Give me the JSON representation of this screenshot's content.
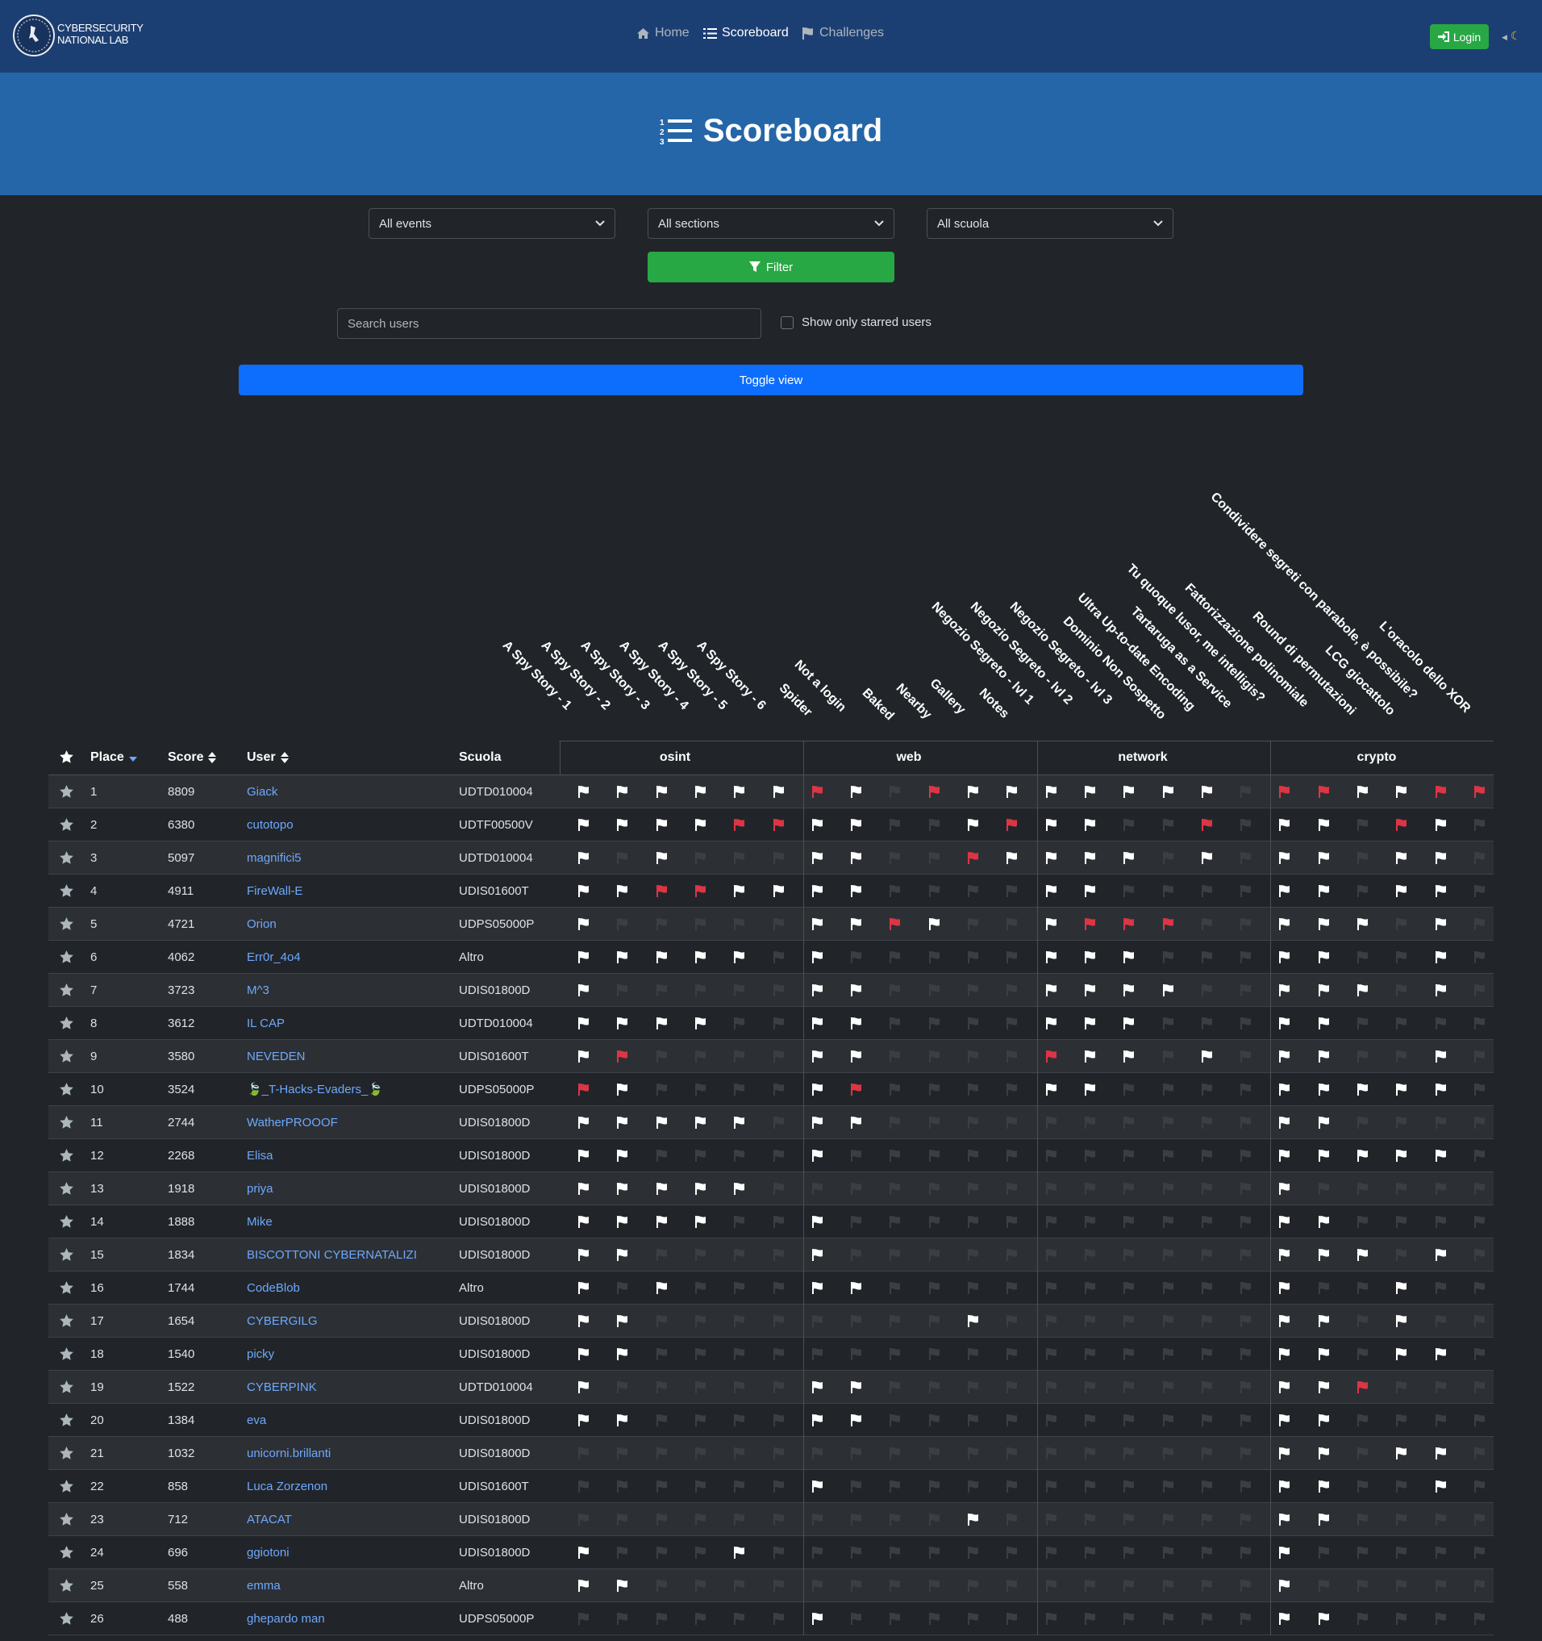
{
  "navbar": {
    "brand_line1": "CYBERSECURITY",
    "brand_line2": "NATIONAL LAB",
    "links": [
      {
        "label": "Home",
        "icon": "home-icon",
        "active": false
      },
      {
        "label": "Scoreboard",
        "icon": "list-ol-icon",
        "active": true
      },
      {
        "label": "Challenges",
        "icon": "flag-icon",
        "active": false
      }
    ],
    "login_label": "Login",
    "theme_toggle_icon": "moon-icon"
  },
  "page_title": "Scoreboard",
  "filters": {
    "events": "All events",
    "sections": "All sections",
    "scuola": "All scuola",
    "filter_label": "Filter"
  },
  "search": {
    "placeholder": "Search users"
  },
  "starred_label": "Show only starred users",
  "toggle_label": "Toggle view",
  "columns": {
    "place": "Place",
    "score": "Score",
    "user": "User",
    "scuola": "Scuola"
  },
  "sections": [
    {
      "name": "osint",
      "challenges": [
        "A Spy Story - 1",
        "A Spy Story - 2",
        "A Spy Story - 3",
        "A Spy Story - 4",
        "A Spy Story - 5",
        "A Spy Story - 6"
      ]
    },
    {
      "name": "web",
      "challenges": [
        "Spider",
        "Not a login",
        "Baked",
        "Nearby",
        "Gallery",
        "Notes"
      ]
    },
    {
      "name": "network",
      "challenges": [
        "Negozio Segreto - lvl 1",
        "Negozio Segreto - lvl 2",
        "Negozio Segreto - lvl 3",
        "Dominio Non Sospetto",
        "Ultra Up-to-date Encoding",
        "Tartaruga as a Service"
      ]
    },
    {
      "name": "crypto",
      "challenges": [
        "Tu quoque lusor, me intelligis?",
        "Fattorizzazione polinomiale",
        "Round di permutazioni",
        "LCG giocattolo",
        "Condividere segreti con parabole, è possibile?",
        "L'oracolo dello XOR"
      ]
    }
  ],
  "colors": {
    "solved": "#ffffff",
    "first_blood": "#dc3545",
    "unsolved": "#3a3f44",
    "link": "#6ea8fe",
    "navbar": "#1c3f73",
    "hero": "#2466a8",
    "accent": "#0d6efd",
    "success": "#28a745"
  },
  "legend": "flags: 1 = solved (white), 2 = first blood (red), 0 = unsolved (dark)",
  "rows": [
    {
      "place": "1",
      "score": "8809",
      "user": "Giack",
      "scuola": "UDTD010004",
      "flags": [
        1,
        1,
        1,
        1,
        1,
        1,
        2,
        1,
        0,
        2,
        1,
        1,
        1,
        1,
        1,
        1,
        1,
        0,
        2,
        2,
        1,
        1,
        2,
        2
      ]
    },
    {
      "place": "2",
      "score": "6380",
      "user": "cutotopo",
      "scuola": "UDTF00500V",
      "flags": [
        1,
        1,
        1,
        1,
        2,
        2,
        1,
        1,
        0,
        0,
        1,
        2,
        1,
        1,
        0,
        0,
        2,
        0,
        1,
        1,
        0,
        2,
        1,
        0
      ]
    },
    {
      "place": "3",
      "score": "5097",
      "user": "magnifici5",
      "scuola": "UDTD010004",
      "flags": [
        1,
        0,
        1,
        0,
        0,
        0,
        1,
        1,
        0,
        0,
        2,
        1,
        1,
        1,
        1,
        0,
        1,
        0,
        1,
        1,
        0,
        1,
        1,
        0
      ]
    },
    {
      "place": "4",
      "score": "4911",
      "user": "FireWall-E",
      "scuola": "UDIS01600T",
      "flags": [
        1,
        1,
        2,
        2,
        1,
        1,
        1,
        1,
        0,
        0,
        0,
        0,
        1,
        1,
        0,
        0,
        0,
        0,
        1,
        1,
        0,
        1,
        1,
        0
      ]
    },
    {
      "place": "5",
      "score": "4721",
      "user": "Orion",
      "scuola": "UDPS05000P",
      "flags": [
        1,
        0,
        0,
        0,
        0,
        0,
        1,
        1,
        2,
        1,
        0,
        0,
        1,
        2,
        2,
        2,
        0,
        0,
        1,
        1,
        1,
        0,
        1,
        0
      ]
    },
    {
      "place": "6",
      "score": "4062",
      "user": "Err0r_4o4",
      "scuola": "Altro",
      "flags": [
        1,
        1,
        1,
        1,
        1,
        0,
        1,
        0,
        0,
        0,
        0,
        0,
        1,
        1,
        1,
        0,
        0,
        0,
        1,
        1,
        0,
        0,
        1,
        0
      ]
    },
    {
      "place": "7",
      "score": "3723",
      "user": "M^3",
      "scuola": "UDIS01800D",
      "flags": [
        1,
        0,
        0,
        0,
        0,
        0,
        1,
        1,
        0,
        0,
        0,
        0,
        1,
        1,
        1,
        1,
        0,
        0,
        1,
        1,
        1,
        0,
        1,
        0
      ]
    },
    {
      "place": "8",
      "score": "3612",
      "user": "IL CAP",
      "scuola": "UDTD010004",
      "flags": [
        1,
        1,
        1,
        1,
        0,
        0,
        1,
        1,
        0,
        0,
        0,
        0,
        1,
        1,
        1,
        0,
        0,
        0,
        1,
        1,
        0,
        0,
        0,
        0
      ]
    },
    {
      "place": "9",
      "score": "3580",
      "user": "NEVEDEN",
      "scuola": "UDIS01600T",
      "flags": [
        1,
        2,
        0,
        0,
        0,
        0,
        1,
        1,
        0,
        0,
        0,
        0,
        2,
        1,
        1,
        0,
        1,
        0,
        1,
        1,
        0,
        0,
        1,
        0
      ]
    },
    {
      "place": "10",
      "score": "3524",
      "user": "🍃_T-Hacks-Evaders_🍃",
      "scuola": "UDPS05000P",
      "flags": [
        2,
        1,
        0,
        0,
        0,
        0,
        1,
        2,
        0,
        0,
        0,
        0,
        1,
        1,
        0,
        0,
        0,
        0,
        1,
        1,
        1,
        1,
        1,
        0
      ]
    },
    {
      "place": "11",
      "score": "2744",
      "user": "WatherPROOOF",
      "scuola": "UDIS01800D",
      "flags": [
        1,
        1,
        1,
        1,
        1,
        0,
        1,
        1,
        0,
        0,
        0,
        0,
        0,
        0,
        0,
        0,
        0,
        0,
        1,
        1,
        0,
        0,
        0,
        0
      ]
    },
    {
      "place": "12",
      "score": "2268",
      "user": "Elisa",
      "scuola": "UDIS01800D",
      "flags": [
        1,
        1,
        0,
        0,
        0,
        0,
        1,
        0,
        0,
        0,
        0,
        0,
        0,
        0,
        0,
        0,
        0,
        0,
        1,
        1,
        1,
        1,
        1,
        0
      ]
    },
    {
      "place": "13",
      "score": "1918",
      "user": "priya",
      "scuola": "UDIS01800D",
      "flags": [
        1,
        1,
        1,
        1,
        1,
        0,
        0,
        0,
        0,
        0,
        0,
        0,
        0,
        0,
        0,
        0,
        0,
        0,
        1,
        0,
        0,
        0,
        0,
        0
      ]
    },
    {
      "place": "14",
      "score": "1888",
      "user": "Mike",
      "scuola": "UDIS01800D",
      "flags": [
        1,
        1,
        1,
        1,
        0,
        0,
        1,
        0,
        0,
        0,
        0,
        0,
        0,
        0,
        0,
        0,
        0,
        0,
        1,
        1,
        0,
        0,
        0,
        0
      ]
    },
    {
      "place": "15",
      "score": "1834",
      "user": "BISCOTTONI CYBERNATALIZI",
      "scuola": "UDIS01800D",
      "flags": [
        1,
        1,
        0,
        0,
        0,
        0,
        1,
        0,
        0,
        0,
        0,
        0,
        0,
        0,
        0,
        0,
        0,
        0,
        1,
        1,
        1,
        0,
        1,
        0
      ]
    },
    {
      "place": "16",
      "score": "1744",
      "user": "CodeBlob",
      "scuola": "Altro",
      "flags": [
        1,
        0,
        1,
        0,
        0,
        0,
        1,
        1,
        0,
        0,
        0,
        0,
        0,
        0,
        0,
        0,
        0,
        0,
        1,
        0,
        0,
        1,
        0,
        0
      ]
    },
    {
      "place": "17",
      "score": "1654",
      "user": "CYBERGILG",
      "scuola": "UDIS01800D",
      "flags": [
        1,
        1,
        0,
        0,
        0,
        0,
        0,
        0,
        0,
        0,
        1,
        0,
        0,
        0,
        0,
        0,
        0,
        0,
        1,
        1,
        0,
        1,
        0,
        0
      ]
    },
    {
      "place": "18",
      "score": "1540",
      "user": "picky",
      "scuola": "UDIS01800D",
      "flags": [
        1,
        1,
        0,
        0,
        0,
        0,
        0,
        0,
        0,
        0,
        0,
        0,
        0,
        0,
        0,
        0,
        0,
        0,
        1,
        1,
        0,
        1,
        1,
        0
      ]
    },
    {
      "place": "19",
      "score": "1522",
      "user": "CYBERPINK",
      "scuola": "UDTD010004",
      "flags": [
        1,
        0,
        0,
        0,
        0,
        0,
        1,
        1,
        0,
        0,
        0,
        0,
        0,
        0,
        0,
        0,
        0,
        0,
        1,
        1,
        2,
        0,
        0,
        0
      ]
    },
    {
      "place": "20",
      "score": "1384",
      "user": "eva",
      "scuola": "UDIS01800D",
      "flags": [
        1,
        1,
        0,
        0,
        0,
        0,
        1,
        1,
        0,
        0,
        0,
        0,
        0,
        0,
        0,
        0,
        0,
        0,
        1,
        1,
        0,
        0,
        0,
        0
      ]
    },
    {
      "place": "21",
      "score": "1032",
      "user": "unicorni.brillanti",
      "scuola": "UDIS01800D",
      "flags": [
        0,
        0,
        0,
        0,
        0,
        0,
        0,
        0,
        0,
        0,
        0,
        0,
        0,
        0,
        0,
        0,
        0,
        0,
        1,
        1,
        0,
        1,
        1,
        0
      ]
    },
    {
      "place": "22",
      "score": "858",
      "user": "Luca Zorzenon",
      "scuola": "UDIS01600T",
      "flags": [
        0,
        0,
        0,
        0,
        0,
        0,
        1,
        0,
        0,
        0,
        0,
        0,
        0,
        0,
        0,
        0,
        0,
        0,
        1,
        1,
        0,
        0,
        1,
        0
      ]
    },
    {
      "place": "23",
      "score": "712",
      "user": "ATACAT",
      "scuola": "UDIS01800D",
      "flags": [
        0,
        0,
        0,
        0,
        0,
        0,
        0,
        0,
        0,
        0,
        1,
        0,
        0,
        0,
        0,
        0,
        0,
        0,
        1,
        1,
        0,
        0,
        0,
        0
      ]
    },
    {
      "place": "24",
      "score": "696",
      "user": "ggiotoni",
      "scuola": "UDIS01800D",
      "flags": [
        1,
        0,
        0,
        0,
        1,
        0,
        0,
        0,
        0,
        0,
        0,
        0,
        0,
        0,
        0,
        0,
        0,
        0,
        1,
        0,
        0,
        0,
        0,
        0
      ]
    },
    {
      "place": "25",
      "score": "558",
      "user": "emma",
      "scuola": "Altro",
      "flags": [
        1,
        1,
        0,
        0,
        0,
        0,
        0,
        0,
        0,
        0,
        0,
        0,
        0,
        0,
        0,
        0,
        0,
        0,
        1,
        0,
        0,
        0,
        0,
        0
      ]
    },
    {
      "place": "26",
      "score": "488",
      "user": "ghepardo man",
      "scuola": "UDPS05000P",
      "flags": [
        0,
        0,
        0,
        0,
        0,
        0,
        1,
        0,
        0,
        0,
        0,
        0,
        0,
        0,
        0,
        0,
        0,
        0,
        1,
        1,
        0,
        0,
        0,
        0
      ]
    }
  ]
}
